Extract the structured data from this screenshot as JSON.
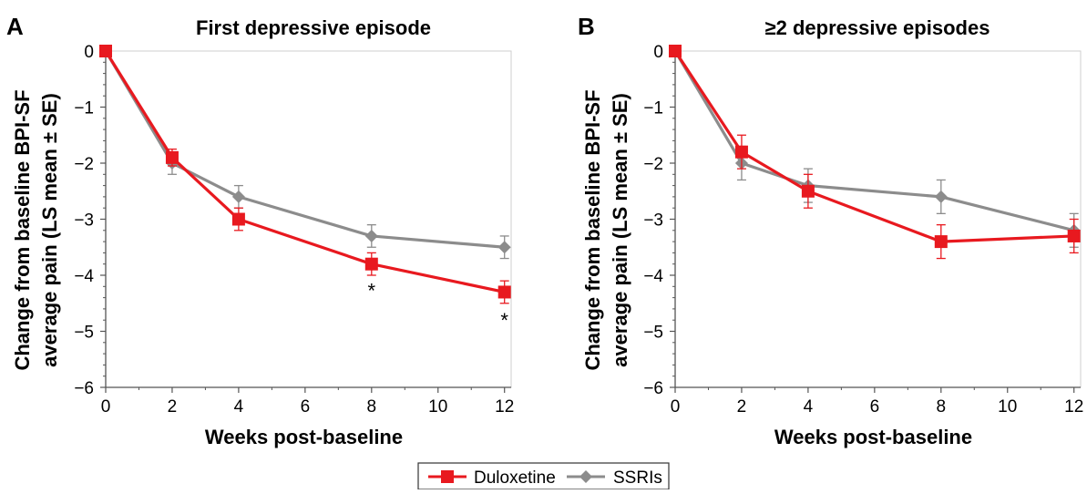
{
  "colors": {
    "duloxetine": "#e8191f",
    "ssri": "#8c8c8c",
    "axis": "#555555"
  },
  "legend": {
    "items": [
      {
        "label": "Duloxetine",
        "color": "#e8191f",
        "marker": "square"
      },
      {
        "label": "SSRIs",
        "color": "#8c8c8c",
        "marker": "diamond"
      }
    ]
  },
  "chart_data": [
    {
      "panel_letter": "A",
      "type": "line",
      "title": "First depressive episode",
      "xlabel": "Weeks post-baseline",
      "ylabel": [
        "Change from baseline BPI-SF",
        "average pain (LS mean ± SE)"
      ],
      "xlim": [
        0,
        12.2
      ],
      "ylim": [
        -6,
        0
      ],
      "xticks": [
        0,
        2,
        4,
        6,
        8,
        10,
        12
      ],
      "yticks": [
        0,
        -1,
        -2,
        -3,
        -4,
        -5,
        -6
      ],
      "ytick_labels": [
        "0",
        "−1",
        "−2",
        "−3",
        "−4",
        "−5",
        "−6"
      ],
      "grid": false,
      "series": [
        {
          "name": "Duloxetine",
          "x": [
            0,
            2,
            4,
            8,
            12
          ],
          "y": [
            0,
            -1.9,
            -3.0,
            -3.8,
            -4.3
          ],
          "se": [
            0,
            0.15,
            0.2,
            0.2,
            0.2
          ]
        },
        {
          "name": "SSRIs",
          "x": [
            0,
            2,
            4,
            8,
            12
          ],
          "y": [
            0,
            -2.0,
            -2.6,
            -3.3,
            -3.5
          ],
          "se": [
            0,
            0.2,
            0.2,
            0.2,
            0.2
          ]
        }
      ],
      "annotations": [
        {
          "text": "*",
          "x": 8,
          "y": -4.2
        },
        {
          "text": "*",
          "x": 12,
          "y": -4.73
        }
      ]
    },
    {
      "panel_letter": "B",
      "type": "line",
      "title": "≥2 depressive episodes",
      "xlabel": "Weeks post-baseline",
      "ylabel": [
        "Change from baseline BPI-SF",
        "average pain (LS mean ± SE)"
      ],
      "xlim": [
        0,
        12.2
      ],
      "ylim": [
        -6,
        0
      ],
      "xticks": [
        0,
        2,
        4,
        6,
        8,
        10,
        12
      ],
      "yticks": [
        0,
        -1,
        -2,
        -3,
        -4,
        -5,
        -6
      ],
      "ytick_labels": [
        "0",
        "−1",
        "−2",
        "−3",
        "−4",
        "−5",
        "−6"
      ],
      "grid": false,
      "series": [
        {
          "name": "Duloxetine",
          "x": [
            0,
            2,
            4,
            8,
            12
          ],
          "y": [
            0,
            -1.8,
            -2.5,
            -3.4,
            -3.3
          ],
          "se": [
            0,
            0.3,
            0.3,
            0.3,
            0.3
          ]
        },
        {
          "name": "SSRIs",
          "x": [
            0,
            2,
            4,
            8,
            12
          ],
          "y": [
            0,
            -2.0,
            -2.4,
            -2.6,
            -3.2
          ],
          "se": [
            0,
            0.3,
            0.3,
            0.3,
            0.3
          ]
        }
      ],
      "annotations": []
    }
  ]
}
